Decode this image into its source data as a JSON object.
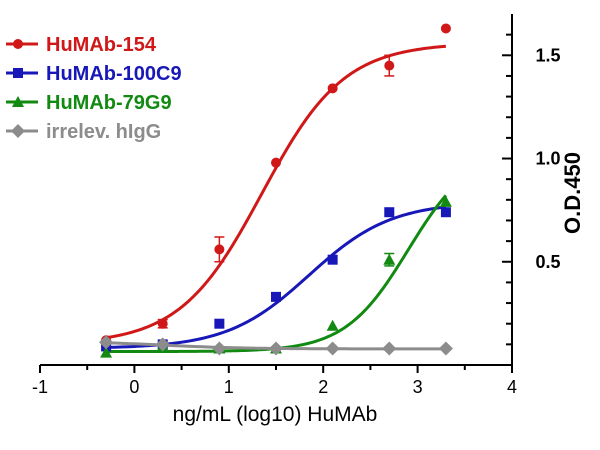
{
  "chart_data": {
    "type": "scatter",
    "title": "",
    "xlabel": "ng/mL (log10) HuMAb",
    "ylabel": "O.D.450",
    "xlim": [
      -1,
      4
    ],
    "ylim": [
      0,
      1.7
    ],
    "x_ticks": [
      "-1",
      "0",
      "1",
      "2",
      "3",
      "4"
    ],
    "y_ticks": [
      "0.5",
      "1.0",
      "1.5"
    ],
    "y_axis_position": "right",
    "legend_position": "top-left",
    "grid": false,
    "series": [
      {
        "name": "HuMAb-154",
        "color": "#d01818",
        "marker": "circle",
        "x": [
          -0.3,
          0.3,
          0.9,
          1.5,
          2.1,
          2.7,
          3.3
        ],
        "y": [
          0.12,
          0.2,
          0.56,
          0.98,
          1.34,
          1.45,
          1.63
        ],
        "error": [
          0.01,
          0.02,
          0.06,
          0.01,
          0.01,
          0.05,
          0.01
        ],
        "fit": {
          "bottom": 0.1,
          "top": 1.56,
          "logEC50": 1.35,
          "hill": 1.0
        }
      },
      {
        "name": "HuMAb-100C9",
        "color": "#1818b8",
        "marker": "square",
        "x": [
          -0.3,
          0.3,
          0.9,
          1.5,
          2.1,
          2.7,
          3.3
        ],
        "y": [
          0.09,
          0.1,
          0.2,
          0.33,
          0.51,
          0.74,
          0.74
        ],
        "error": [
          0.01,
          0.01,
          0.01,
          0.01,
          0.01,
          0.01,
          0.01
        ],
        "fit": {
          "bottom": 0.08,
          "top": 0.79,
          "logEC50": 1.85,
          "hill": 1.0
        }
      },
      {
        "name": "HuMAb-79G9",
        "color": "#128a12",
        "marker": "triangle",
        "x": [
          -0.3,
          0.3,
          0.9,
          1.5,
          2.1,
          2.7,
          3.3
        ],
        "y": [
          0.06,
          0.09,
          0.08,
          0.08,
          0.19,
          0.51,
          0.79
        ],
        "error": [
          0.01,
          0.01,
          0.01,
          0.01,
          0.01,
          0.03,
          0.01
        ],
        "fit": {
          "bottom": 0.065,
          "top": 1.05,
          "logEC50": 2.9,
          "hill": 1.3
        }
      },
      {
        "name": "irrelev. hIgG",
        "color": "#8c8c8c",
        "marker": "diamond",
        "x": [
          -0.3,
          0.3,
          0.9,
          1.5,
          2.1,
          2.7,
          3.3
        ],
        "y": [
          0.11,
          0.1,
          0.08,
          0.08,
          0.08,
          0.08,
          0.08
        ],
        "error": [
          0.01,
          0.01,
          0.01,
          0.01,
          0.01,
          0.01,
          0.01
        ],
        "fit": {
          "bottom": 0.078,
          "top": 0.115,
          "logEC50": 0.3,
          "hill": -1.0
        }
      }
    ]
  }
}
